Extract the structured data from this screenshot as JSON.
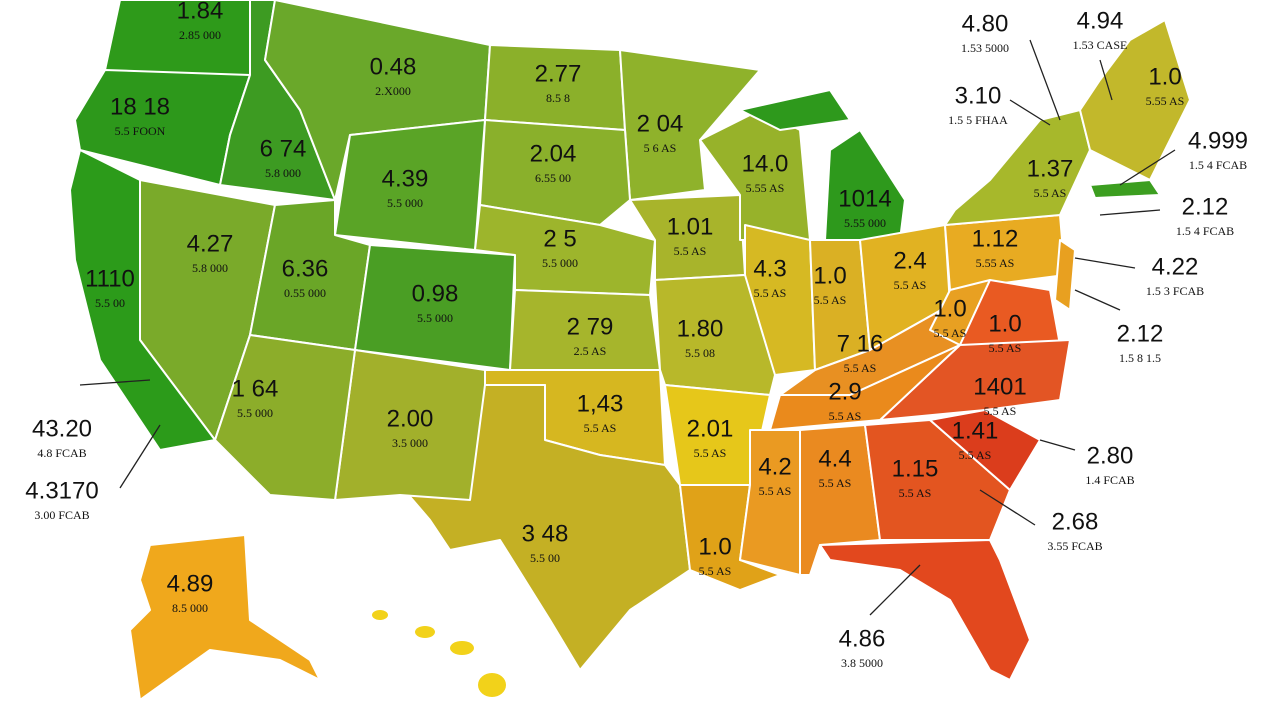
{
  "states": [
    {
      "value": "1.84",
      "note": "2.85 000"
    },
    {
      "value": "18 18",
      "note": "5.5 FOON"
    },
    {
      "value": "6 74",
      "note": "5.8 000"
    },
    {
      "value": "0.48",
      "note": "2.X000"
    },
    {
      "value": "2.77",
      "note": "8.5 8"
    },
    {
      "value": "2 04",
      "note": "5 6 AS"
    },
    {
      "value": "2.04",
      "note": "6.55 00"
    },
    {
      "value": "4.39",
      "note": "5.5 000"
    },
    {
      "value": "4.27",
      "note": "5.8 000"
    },
    {
      "value": "6.36",
      "note": "0.55 000"
    },
    {
      "value": "0.98",
      "note": "5.5 000"
    },
    {
      "value": "2 5",
      "note": "5.5 000"
    },
    {
      "value": "1.01",
      "note": "5.5 AS"
    },
    {
      "value": "14.0",
      "note": "5.55 AS"
    },
    {
      "value": "1014",
      "note": "5.55 000"
    },
    {
      "value": "2 79",
      "note": "2.5 AS"
    },
    {
      "value": "1.80",
      "note": "5.5 08"
    },
    {
      "value": "4.3",
      "note": "5.5 AS"
    },
    {
      "value": "1.0",
      "note": "5.5 AS"
    },
    {
      "value": "2.4",
      "note": "5.5 AS"
    },
    {
      "value": "1.12",
      "note": "5.55 AS"
    },
    {
      "value": "1.37",
      "note": "5.5 AS"
    },
    {
      "value": "1.0",
      "note": "5.5 AS"
    },
    {
      "value": "1.0",
      "note": "5.5 AS"
    },
    {
      "value": "7 16",
      "note": "5.5 AS"
    },
    {
      "value": "2.9",
      "note": "5.5 AS"
    },
    {
      "value": "1 64",
      "note": "5.5 000"
    },
    {
      "value": "2.00",
      "note": "3.5 000"
    },
    {
      "value": "1,43",
      "note": "5.5 AS"
    },
    {
      "value": "2.01",
      "note": "5.5 AS"
    },
    {
      "value": "1401",
      "note": "5.5 AS"
    },
    {
      "value": "1.41",
      "note": "5.5 AS"
    },
    {
      "value": "1.15",
      "note": "5.5 AS"
    },
    {
      "value": "4.2",
      "note": "5.5 AS"
    },
    {
      "value": "4.4",
      "note": "5.5 AS"
    },
    {
      "value": "3 48",
      "note": "5.5 00"
    },
    {
      "value": "1.0",
      "note": "5.5 AS"
    },
    {
      "value": "1110",
      "note": "5.5 00"
    },
    {
      "value": "1.0",
      "note": "5.55 AS"
    },
    {
      "value": "4.89",
      "note": "8.5 000"
    }
  ],
  "callouts": [
    {
      "value": "4.80",
      "note": "1.53 5000"
    },
    {
      "value": "4.94",
      "note": "1.53 CASE"
    },
    {
      "value": "3.10",
      "note": "1.5 5 FHAA"
    },
    {
      "value": "4.999",
      "note": "1.5 4 FCAB"
    },
    {
      "value": "2.12",
      "note": "1.5 4 FCAB"
    },
    {
      "value": "4.22",
      "note": "1.5 3 FCAB"
    },
    {
      "value": "2.12",
      "note": "1.5 8 1.5"
    },
    {
      "value": "2.80",
      "note": "1.4 FCAB"
    },
    {
      "value": "2.68",
      "note": "3.55 FCAB"
    },
    {
      "value": "4.86",
      "note": "3.8 5000"
    },
    {
      "value": "43.20",
      "note": "4.8 FCAB"
    },
    {
      "value": "4.3170",
      "note": "3.00 FCAB"
    }
  ]
}
